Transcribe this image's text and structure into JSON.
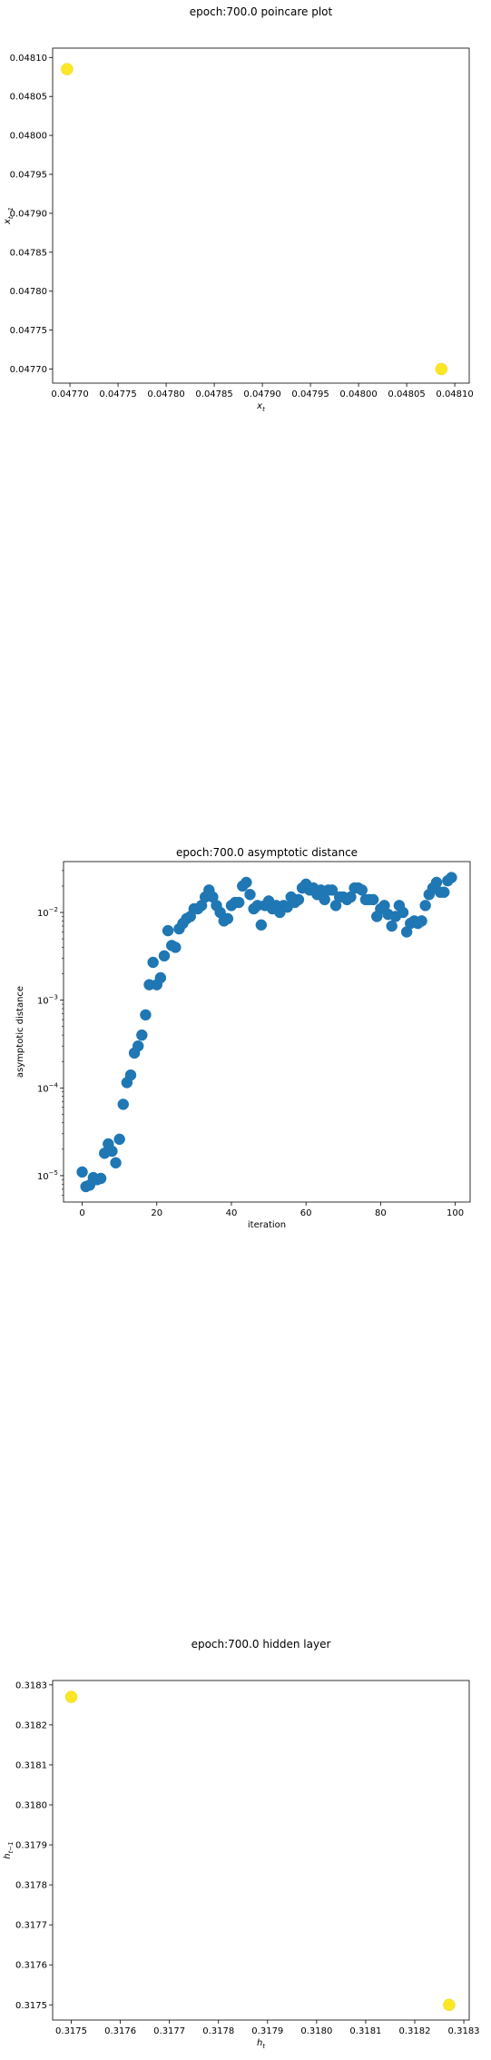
{
  "chart_data": [
    {
      "type": "scatter",
      "title": "epoch:700.0 poincare plot",
      "xlabel_main": "x",
      "xlabel_sub": "t",
      "ylabel_main": "x",
      "ylabel_sub": "t−1",
      "xlim": [
        0.047682,
        0.048115
      ],
      "ylim": [
        0.047682,
        0.048112
      ],
      "xticks": [
        0.0477,
        0.04775,
        0.0478,
        0.04785,
        0.0479,
        0.04795,
        0.048,
        0.04805,
        0.0481
      ],
      "xtick_labels": [
        "0.04770",
        "0.04775",
        "0.04780",
        "0.04785",
        "0.04790",
        "0.04795",
        "0.04800",
        "0.04805",
        "0.04810"
      ],
      "yticks": [
        0.0477,
        0.04775,
        0.0478,
        0.04785,
        0.0479,
        0.04795,
        0.048,
        0.04805,
        0.0481
      ],
      "ytick_labels": [
        "0.04770",
        "0.04775",
        "0.04780",
        "0.04785",
        "0.04790",
        "0.04795",
        "0.04800",
        "0.04805",
        "0.04810"
      ],
      "point_color": "#fde725",
      "points": [
        {
          "x": 0.047697,
          "y": 0.048085
        },
        {
          "x": 0.048086,
          "y": 0.0477
        }
      ]
    },
    {
      "type": "scatter",
      "title": "epoch:700.0 asymptotic distance",
      "xlabel": "iteration",
      "ylabel": "asymptotic distance",
      "yscale": "log",
      "xlim": [
        -5,
        104
      ],
      "ylim": [
        5e-06,
        0.038
      ],
      "xticks": [
        0,
        20,
        40,
        60,
        80,
        100
      ],
      "xtick_labels": [
        "0",
        "20",
        "40",
        "60",
        "80",
        "100"
      ],
      "yticks": [
        1e-05,
        0.0001,
        0.001,
        0.01
      ],
      "ytick_base": "10",
      "ytick_exps": [
        "−5",
        "−4",
        "−3",
        "−2"
      ],
      "point_color": "#1f77b4",
      "x": [
        0,
        1,
        2,
        3,
        4,
        5,
        6,
        7,
        8,
        9,
        10,
        11,
        12,
        13,
        14,
        15,
        16,
        17,
        18,
        19,
        20,
        21,
        22,
        23,
        24,
        25,
        26,
        27,
        28,
        29,
        30,
        31,
        32,
        33,
        34,
        35,
        36,
        37,
        38,
        39,
        40,
        41,
        42,
        43,
        44,
        45,
        46,
        47,
        48,
        49,
        50,
        51,
        52,
        53,
        54,
        55,
        56,
        57,
        58,
        59,
        60,
        61,
        62,
        63,
        64,
        65,
        66,
        67,
        68,
        69,
        70,
        71,
        72,
        73,
        74,
        75,
        76,
        77,
        78,
        79,
        80,
        81,
        82,
        83,
        84,
        85,
        86,
        87,
        88,
        89,
        90,
        91,
        92,
        93,
        94,
        95,
        96,
        97,
        98,
        99
      ],
      "y": [
        1.1e-05,
        7.5e-06,
        7.8e-06,
        9.5e-06,
        9e-06,
        9.3e-06,
        1.8e-05,
        2.3e-05,
        1.9e-05,
        1.4e-05,
        2.6e-05,
        6.5e-05,
        0.000115,
        0.00014,
        0.00025,
        0.0003,
        0.0004,
        0.00068,
        0.0015,
        0.0027,
        0.0015,
        0.0018,
        0.0032,
        0.0062,
        0.0042,
        0.004,
        0.0065,
        0.0075,
        0.0085,
        0.009,
        0.011,
        0.011,
        0.012,
        0.015,
        0.018,
        0.015,
        0.012,
        0.01,
        0.008,
        0.0085,
        0.012,
        0.013,
        0.013,
        0.02,
        0.022,
        0.016,
        0.011,
        0.012,
        0.0072,
        0.012,
        0.0135,
        0.011,
        0.012,
        0.01,
        0.012,
        0.0115,
        0.015,
        0.013,
        0.014,
        0.019,
        0.021,
        0.018,
        0.019,
        0.016,
        0.018,
        0.014,
        0.018,
        0.018,
        0.012,
        0.015,
        0.015,
        0.014,
        0.015,
        0.019,
        0.019,
        0.018,
        0.014,
        0.014,
        0.014,
        0.009,
        0.011,
        0.012,
        0.0095,
        0.007,
        0.009,
        0.012,
        0.01,
        0.006,
        0.0075,
        0.008,
        0.0075,
        0.008,
        0.012,
        0.016,
        0.019,
        0.022,
        0.017,
        0.017,
        0.023,
        0.025
      ]
    },
    {
      "type": "scatter",
      "title": "epoch:700.0 hidden layer",
      "xlabel_main": "h",
      "xlabel_sub": "t",
      "ylabel_main": "h",
      "ylabel_sub": "t−1",
      "xlim": [
        0.317462,
        0.318311
      ],
      "ylim": [
        0.317462,
        0.318311
      ],
      "xticks": [
        0.3175,
        0.3176,
        0.3177,
        0.3178,
        0.3179,
        0.318,
        0.3181,
        0.3182,
        0.3183
      ],
      "xtick_labels": [
        "0.3175",
        "0.3176",
        "0.3177",
        "0.3178",
        "0.3179",
        "0.3180",
        "0.3181",
        "0.3182",
        "0.3183"
      ],
      "yticks": [
        0.3175,
        0.3176,
        0.3177,
        0.3178,
        0.3179,
        0.318,
        0.3181,
        0.3182,
        0.3183
      ],
      "ytick_labels": [
        "0.3175",
        "0.3176",
        "0.3177",
        "0.3178",
        "0.3179",
        "0.3180",
        "0.3181",
        "0.3182",
        "0.3183"
      ],
      "point_color": "#fde725",
      "points": [
        {
          "x": 0.3175,
          "y": 0.31827
        },
        {
          "x": 0.31827,
          "y": 0.3175
        }
      ]
    }
  ]
}
